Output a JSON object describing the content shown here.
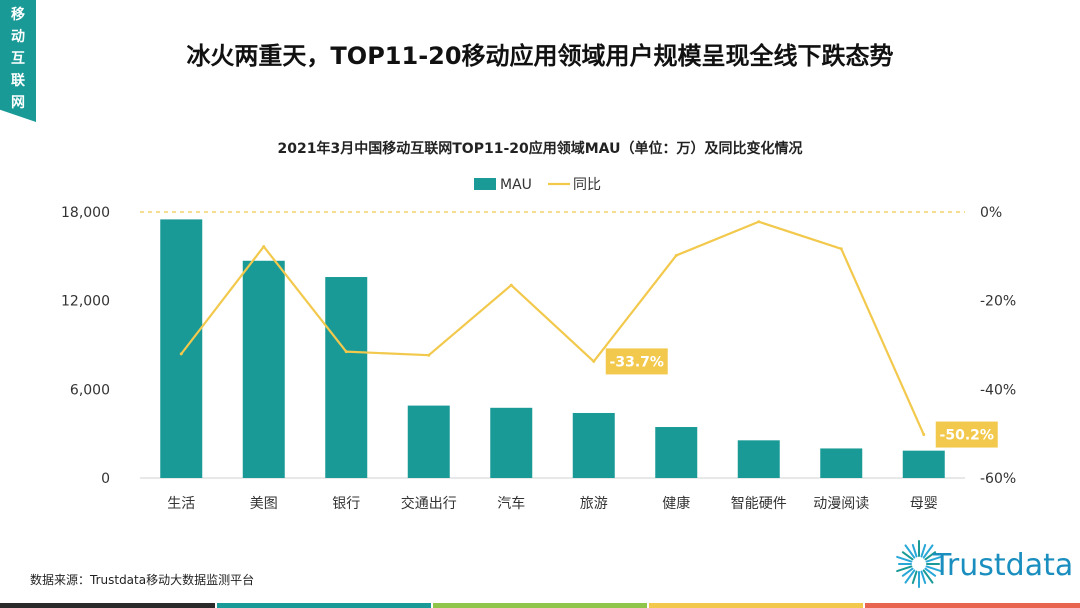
{
  "side_tag": {
    "chars": [
      "移",
      "动",
      "互",
      "联",
      "网"
    ]
  },
  "headline": "冰火两重天，TOP11-20移动应用领域用户规模呈现全线下跌态势",
  "source": "数据来源：Trustdata移动大数据监测平台",
  "logo_text": "Trustdata",
  "colors": {
    "teal": "#1a9a96",
    "line": "#f2c94c",
    "label_bg": "#f2c94c",
    "grid": "#f2c94c"
  },
  "chart_data": {
    "type": "bar",
    "title": "2021年3月中国移动互联网TOP11-20应用领域MAU（单位：万）及同比变化情况",
    "categories": [
      "生活",
      "美图",
      "银行",
      "交通出行",
      "汽车",
      "旅游",
      "健康",
      "智能硬件",
      "动漫阅读",
      "母婴"
    ],
    "series": [
      {
        "name": "MAU",
        "type": "bar",
        "axis": "left",
        "values": [
          17500,
          14700,
          13600,
          4900,
          4750,
          4400,
          3450,
          2550,
          2000,
          1850
        ]
      },
      {
        "name": "同比",
        "type": "line",
        "axis": "right",
        "unit": "%",
        "values": [
          -32.0,
          -7.8,
          -31.5,
          -32.3,
          -16.5,
          -33.7,
          -9.8,
          -2.2,
          -8.3,
          -50.2
        ]
      }
    ],
    "left_axis": {
      "ylim": [
        0,
        18000
      ],
      "ticks": [
        0,
        6000,
        12000,
        18000
      ],
      "tick_labels": [
        "0",
        "6,000",
        "12,000",
        "18,000"
      ]
    },
    "right_axis": {
      "ylim": [
        -60,
        0
      ],
      "ticks": [
        0,
        -20,
        -40,
        -60
      ],
      "tick_labels": [
        "0%",
        "-20%",
        "-40%",
        "-60%"
      ]
    },
    "data_labels": [
      {
        "series": "同比",
        "index": 5,
        "text": "-33.7%"
      },
      {
        "series": "同比",
        "index": 9,
        "text": "-50.2%"
      }
    ],
    "legend": {
      "position": "top",
      "entries": [
        "MAU",
        "同比"
      ]
    }
  }
}
